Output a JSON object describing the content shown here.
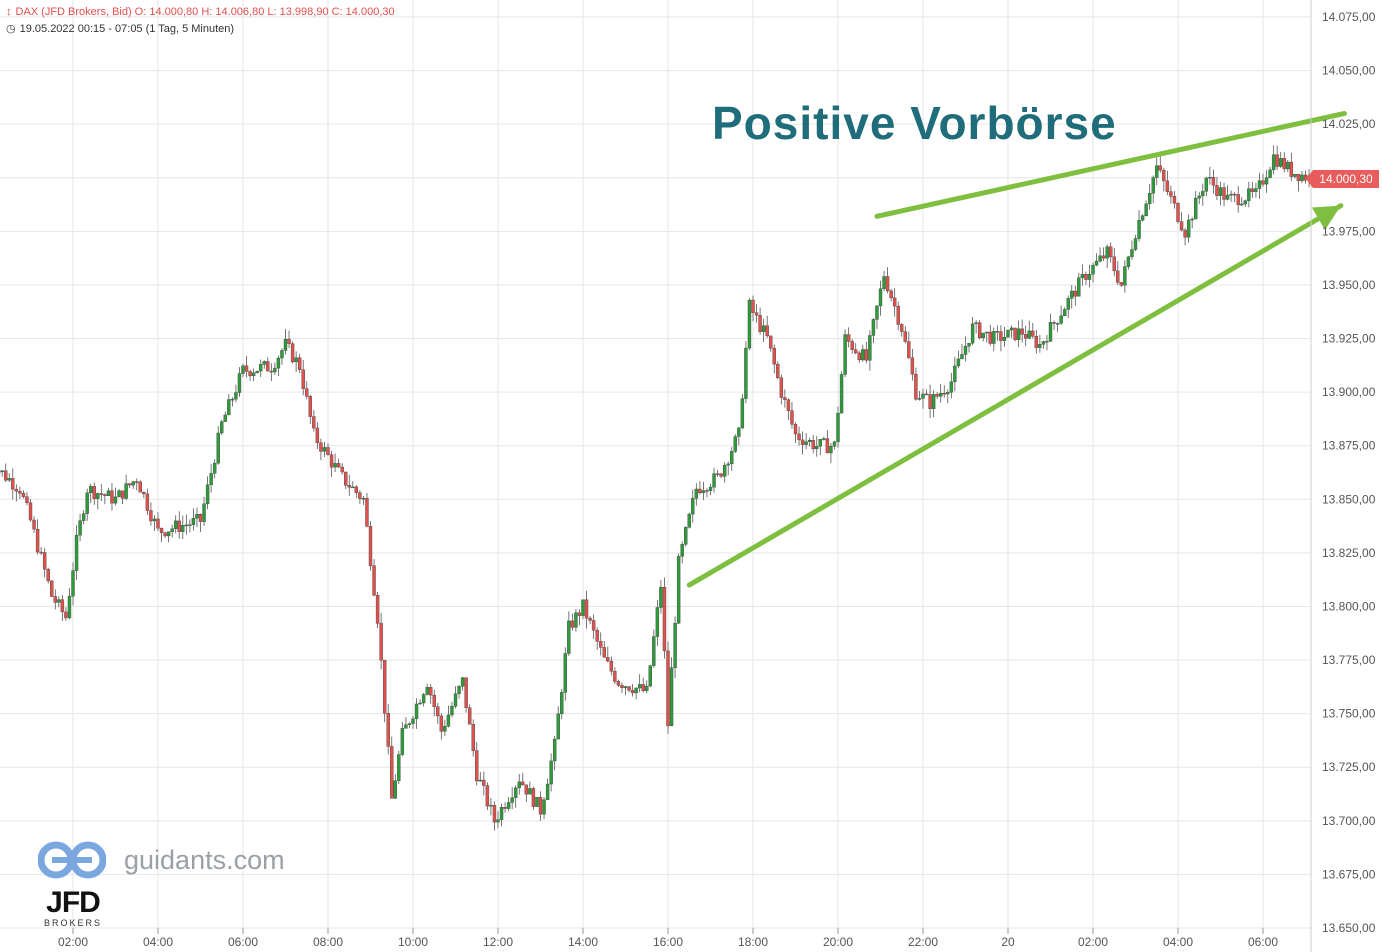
{
  "header": {
    "line1": "DAX (JFD Brokers, Bid)  O: 14.000,80  H: 14.006,80  L: 13.998,90  C: 14.000,30",
    "line2": "19.05.2022 00:15 - 07:05   (1 Tag, 5 Minuten)",
    "icon1": "candlestick-icon",
    "icon2": "clock-icon"
  },
  "annotation": "Positive Vorbörse",
  "price_badge": "14.000,30",
  "logos": {
    "guidants": "guidants.com",
    "jfd": "JFD",
    "jfd_sub": "BROKERS"
  },
  "colors": {
    "up": "#2e9b3a",
    "down": "#e0504c",
    "trendline": "#7fbf3f",
    "annotation": "#1f6d7a",
    "grid": "#e6e6e6"
  },
  "chart_data": {
    "type": "candlestick",
    "title": "DAX (JFD Brokers, Bid)",
    "y_ticks": [
      "14.075,00",
      "14.050,00",
      "14.025,00",
      "14.000,00",
      "13.975,00",
      "13.950,00",
      "13.925,00",
      "13.900,00",
      "13.875,00",
      "13.850,00",
      "13.825,00",
      "13.800,00",
      "13.775,00",
      "13.750,00",
      "13.725,00",
      "13.700,00",
      "13.675,00",
      "13.650,00"
    ],
    "x_ticks": [
      "02:00",
      "04:00",
      "06:00",
      "08:00",
      "10:00",
      "12:00",
      "14:00",
      "16:00",
      "18:00",
      "20:00",
      "22:00",
      "20",
      "02:00",
      "04:00",
      "06:00"
    ],
    "ylim": [
      13650,
      14075
    ],
    "last_close": 14000.3,
    "trendlines": [
      {
        "name": "upper",
        "from": {
          "time": "20:55",
          "value": 13982
        },
        "to": {
          "time": "07:55",
          "value": 14030
        }
      },
      {
        "name": "lower-arrow",
        "from": {
          "time": "16:30",
          "value": 13810
        },
        "to": {
          "time": "07:50",
          "value": 13987
        }
      }
    ],
    "path_points": [
      {
        "t": "00:00",
        "v": 13868
      },
      {
        "t": "00:45",
        "v": 13855
      },
      {
        "t": "01:00",
        "v": 13840
      },
      {
        "t": "01:30",
        "v": 13805
      },
      {
        "t": "01:50",
        "v": 13795
      },
      {
        "t": "02:05",
        "v": 13830
      },
      {
        "t": "02:20",
        "v": 13855
      },
      {
        "t": "03:00",
        "v": 13850
      },
      {
        "t": "03:30",
        "v": 13860
      },
      {
        "t": "04:00",
        "v": 13835
      },
      {
        "t": "05:00",
        "v": 13840
      },
      {
        "t": "05:30",
        "v": 13885
      },
      {
        "t": "06:00",
        "v": 13910
      },
      {
        "t": "06:40",
        "v": 13912
      },
      {
        "t": "07:00",
        "v": 13922
      },
      {
        "t": "07:20",
        "v": 13912
      },
      {
        "t": "07:40",
        "v": 13880
      },
      {
        "t": "08:20",
        "v": 13860
      },
      {
        "t": "08:50",
        "v": 13850
      },
      {
        "t": "09:10",
        "v": 13795
      },
      {
        "t": "09:30",
        "v": 13710
      },
      {
        "t": "09:45",
        "v": 13740
      },
      {
        "t": "10:20",
        "v": 13765
      },
      {
        "t": "10:40",
        "v": 13742
      },
      {
        "t": "11:10",
        "v": 13765
      },
      {
        "t": "11:30",
        "v": 13722
      },
      {
        "t": "11:55",
        "v": 13700
      },
      {
        "t": "12:30",
        "v": 13720
      },
      {
        "t": "13:00",
        "v": 13705
      },
      {
        "t": "13:20",
        "v": 13735
      },
      {
        "t": "13:40",
        "v": 13790
      },
      {
        "t": "14:00",
        "v": 13800
      },
      {
        "t": "14:30",
        "v": 13775
      },
      {
        "t": "14:50",
        "v": 13765
      },
      {
        "t": "15:30",
        "v": 13760
      },
      {
        "t": "15:50",
        "v": 13810
      },
      {
        "t": "16:00",
        "v": 13745
      },
      {
        "t": "16:15",
        "v": 13820
      },
      {
        "t": "16:40",
        "v": 13855
      },
      {
        "t": "17:10",
        "v": 13860
      },
      {
        "t": "17:40",
        "v": 13880
      },
      {
        "t": "17:55",
        "v": 13940
      },
      {
        "t": "18:20",
        "v": 13925
      },
      {
        "t": "18:40",
        "v": 13900
      },
      {
        "t": "19:00",
        "v": 13880
      },
      {
        "t": "19:30",
        "v": 13875
      },
      {
        "t": "19:55",
        "v": 13875
      },
      {
        "t": "20:10",
        "v": 13925
      },
      {
        "t": "20:40",
        "v": 13915
      },
      {
        "t": "21:05",
        "v": 13955
      },
      {
        "t": "21:30",
        "v": 13930
      },
      {
        "t": "21:50",
        "v": 13900
      },
      {
        "t": "22:10",
        "v": 13895
      },
      {
        "t": "22:40",
        "v": 13905
      },
      {
        "t": "23:10",
        "v": 13930
      },
      {
        "t": "23:40",
        "v": 13925
      },
      {
        "t": "00:20",
        "v": 13928
      },
      {
        "t": "00:45",
        "v": 13922
      },
      {
        "t": "01:20",
        "v": 13940
      },
      {
        "t": "01:50",
        "v": 13955
      },
      {
        "t": "02:20",
        "v": 13965
      },
      {
        "t": "02:40",
        "v": 13950
      },
      {
        "t": "03:00",
        "v": 13975
      },
      {
        "t": "03:30",
        "v": 14005
      },
      {
        "t": "03:50",
        "v": 13990
      },
      {
        "t": "04:10",
        "v": 13975
      },
      {
        "t": "04:40",
        "v": 14000
      },
      {
        "t": "05:10",
        "v": 13990
      },
      {
        "t": "05:50",
        "v": 13992
      },
      {
        "t": "06:15",
        "v": 14010
      },
      {
        "t": "06:40",
        "v": 14003
      },
      {
        "t": "07:05",
        "v": 14000
      }
    ]
  }
}
